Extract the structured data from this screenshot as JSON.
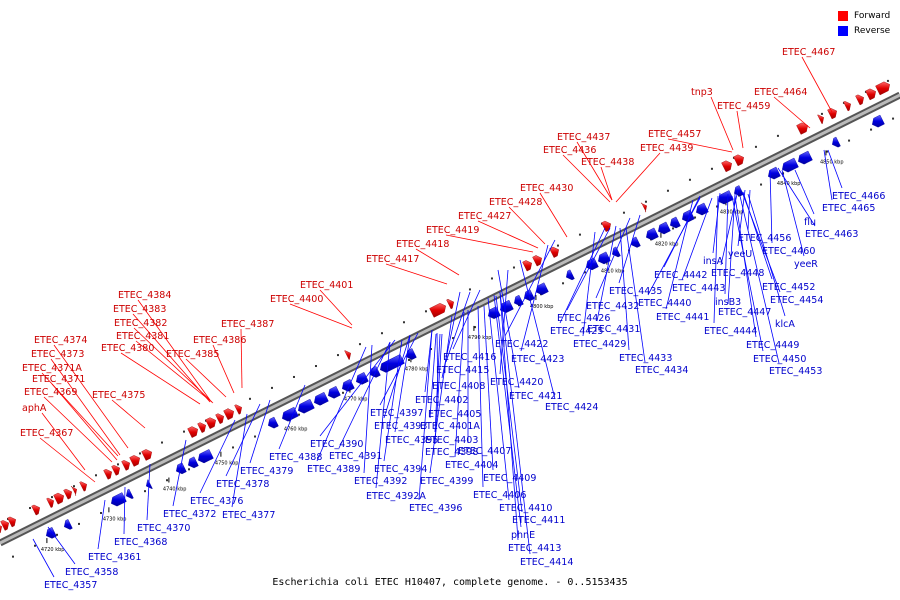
{
  "caption": "Escherichia coli ETEC H10407, complete genome. - 0..5153435",
  "legend": {
    "forward": {
      "label": "Forward",
      "color": "#ff0000"
    },
    "reverse": {
      "label": "Reverse",
      "color": "#0000ff"
    }
  },
  "colors": {
    "forward": "#ee0000",
    "reverse": "#0000ee",
    "axis": "#888888"
  },
  "kbp_labels": [
    "4720 kbp",
    "4730 kbp",
    "4740 kbp",
    "4750 kbp",
    "4760 kbp",
    "4770 kbp",
    "4780 kbp",
    "4790 kbp",
    "4800 kbp",
    "4810 kbp",
    "4820 kbp",
    "4830 kbp",
    "4840 kbp",
    "4850 kbp"
  ],
  "forward_labels": [
    "ETEC_4467",
    "ETEC_4464",
    "tnp3",
    "ETEC_4459",
    "ETEC_4457",
    "ETEC_4437",
    "ETEC_4436",
    "ETEC_4439",
    "ETEC_4438",
    "ETEC_4430",
    "ETEC_4428",
    "ETEC_4427",
    "ETEC_4419",
    "ETEC_4418",
    "ETEC_4417",
    "ETEC_4401",
    "ETEC_4400",
    "ETEC_4384",
    "ETEC_4383",
    "ETEC_4382",
    "ETEC_4381",
    "ETEC_4387",
    "ETEC_4386",
    "ETEC_4380",
    "ETEC_4385",
    "ETEC_4374",
    "ETEC_4373",
    "ETEC_4371A",
    "ETEC_4371",
    "ETEC_4369",
    "ETEC_4375",
    "aphA",
    "ETEC_4367"
  ],
  "reverse_labels": [
    "ETEC_4466",
    "ETEC_4465",
    "flu",
    "ETEC_4463",
    "yeeR",
    "ETEC_4460",
    "ETEC_4456",
    "yeeU",
    "ETEC_4448",
    "ETEC_4452",
    "ETEC_4454",
    "insA",
    "ETEC_4442",
    "ETEC_4443",
    "ETEC_4440",
    "insB3",
    "ETEC_4447",
    "ETEC_4441",
    "klcA",
    "ETEC_4444",
    "ETEC_4449",
    "ETEC_4450",
    "ETEC_4453",
    "ETEC_4435",
    "ETEC_4432",
    "ETEC_4426",
    "ETEC_4425",
    "ETEC_4431",
    "ETEC_4429",
    "ETEC_4433",
    "ETEC_4434",
    "ETEC_4422",
    "ETEC_4423",
    "ETEC_4416",
    "ETEC_4415",
    "ETEC_4420",
    "ETEC_4421",
    "ETEC_4408",
    "ETEC_4424",
    "ETEC_4402",
    "ETEC_4397",
    "ETEC_4405",
    "ETEC_4393",
    "ETEC_4401A",
    "ETEC_4395",
    "ETEC_4403",
    "ETEC_4390",
    "ETEC_4398",
    "ETEC_4407",
    "ETEC_4391",
    "ETEC_4404",
    "ETEC_4388",
    "ETEC_4389",
    "ETEC_4394",
    "ETEC_4409",
    "ETEC_4379",
    "ETEC_4392",
    "ETEC_4399",
    "ETEC_4378",
    "ETEC_4392A",
    "ETEC_4406",
    "ETEC_4376",
    "ETEC_4396",
    "ETEC_4410",
    "ETEC_4372",
    "ETEC_4377",
    "ETEC_4411",
    "ETEC_4370",
    "phnE",
    "ETEC_4368",
    "ETEC_4413",
    "ETEC_4361",
    "ETEC_4414",
    "ETEC_4358",
    "ETEC_4357"
  ]
}
